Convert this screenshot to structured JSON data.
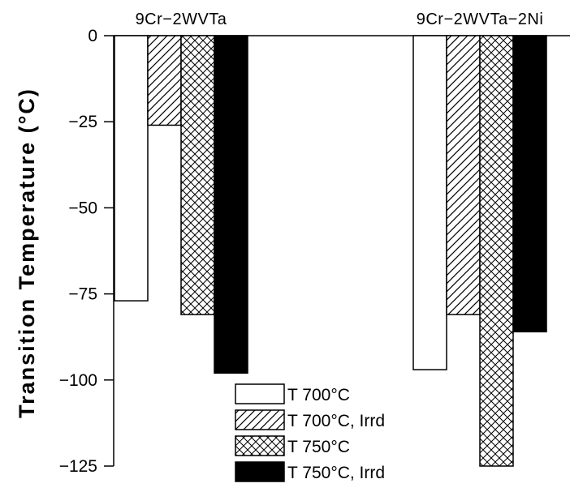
{
  "chart_data": {
    "type": "bar",
    "title": "",
    "xlabel": "",
    "ylabel": "Transition Temperature (°C)",
    "ylim": [
      -125,
      0
    ],
    "yticks": [
      0,
      -25,
      -50,
      -75,
      -100,
      -125
    ],
    "ytick_labels": [
      "0",
      "-25",
      "-50",
      "-75",
      "-100",
      "-125"
    ],
    "categories": [
      "9Cr-2WVTa",
      "9Cr-2WVTa-2Ni"
    ],
    "series": [
      {
        "name": "T 700°C",
        "pattern": "empty",
        "values": [
          -77,
          -97
        ]
      },
      {
        "name": "T 700°C, Irrd",
        "pattern": "diagonal-hatch",
        "values": [
          -26,
          -81
        ]
      },
      {
        "name": "T 750°C",
        "pattern": "cross-hatch",
        "values": [
          -81,
          -125
        ]
      },
      {
        "name": "T 750°C, Irrd",
        "pattern": "solid-black",
        "values": [
          -98,
          -86
        ]
      }
    ],
    "legend": "bottom-center",
    "grid": false
  },
  "colors": {
    "ink": "#000000",
    "background": "#ffffff"
  }
}
